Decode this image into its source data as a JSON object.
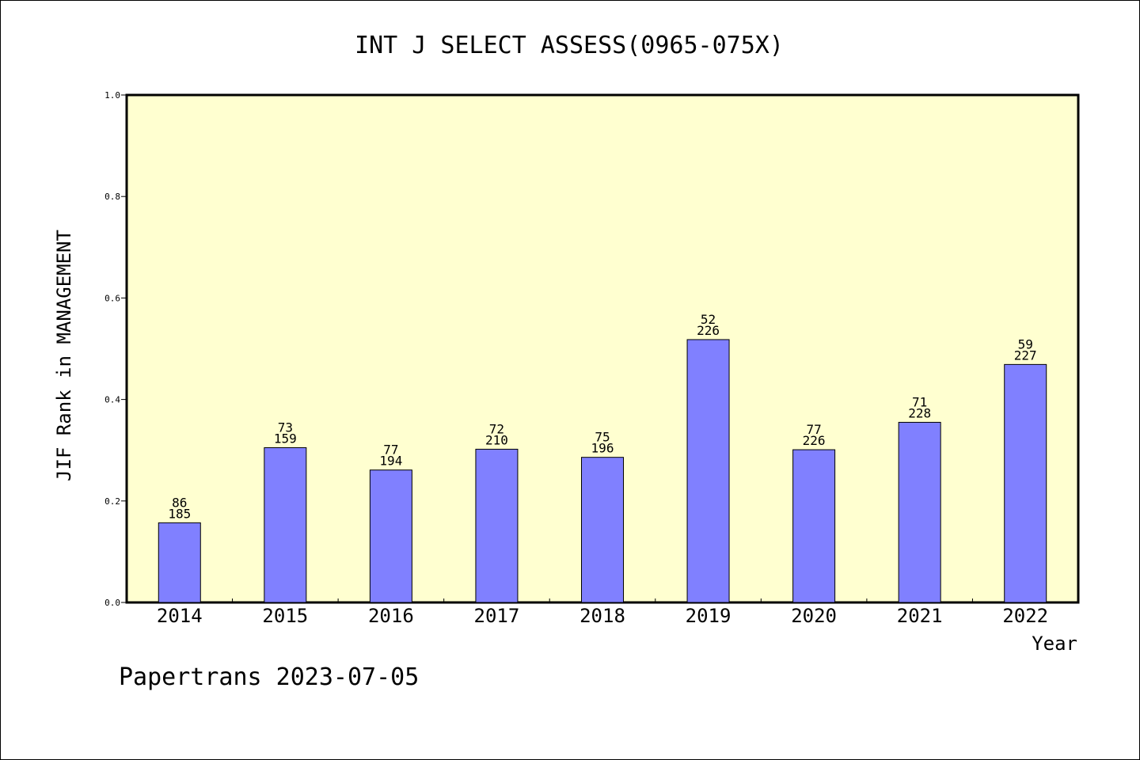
{
  "chart_data": {
    "type": "bar",
    "title": "INT J SELECT ASSESS(0965-075X)",
    "xlabel": "Year",
    "ylabel": "JIF Rank in MANAGEMENT",
    "ylim": [
      0.0,
      1.0
    ],
    "yticks": [
      "0.0",
      "0.2",
      "0.4",
      "0.6",
      "0.8",
      "1.0"
    ],
    "grid": false,
    "categories": [
      "2014",
      "2015",
      "2016",
      "2017",
      "2018",
      "2019",
      "2020",
      "2021",
      "2022"
    ],
    "values": [
      0.157,
      0.305,
      0.261,
      0.302,
      0.286,
      0.518,
      0.301,
      0.355,
      0.469
    ],
    "rank": [
      "86",
      "73",
      "77",
      "72",
      "75",
      "52",
      "77",
      "71",
      "59"
    ],
    "total": [
      "185",
      "159",
      "194",
      "210",
      "196",
      "226",
      "226",
      "228",
      "227"
    ],
    "bar_color": "#8080ff",
    "plot_background": "#ffffd0"
  },
  "footer": "Papertrans 2023-07-05"
}
